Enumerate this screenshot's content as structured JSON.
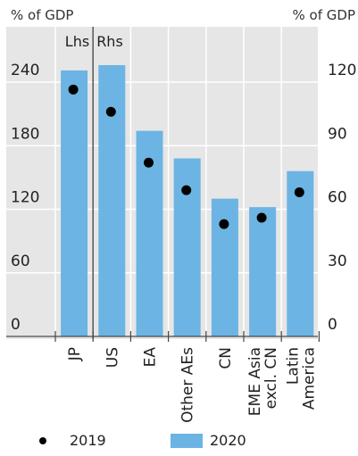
{
  "chart_data": {
    "type": "bar",
    "left_unit": "% of GDP",
    "right_unit": "% of GDP",
    "panel_labels": [
      "Lhs",
      "Rhs"
    ],
    "categories": [
      "JP",
      "US",
      "EA",
      "Other AEs",
      "CN",
      "EME Asia excl. CN",
      "Latin America"
    ],
    "category_lines": [
      [
        "JP"
      ],
      [
        "US"
      ],
      [
        "EA"
      ],
      [
        "Other AEs"
      ],
      [
        "CN"
      ],
      [
        "EME Asia",
        "excl. CN"
      ],
      [
        "Latin",
        "America"
      ]
    ],
    "category_axis": [
      "left",
      "right",
      "right",
      "right",
      "right",
      "right",
      "right"
    ],
    "left_axis": {
      "ticks": [
        0,
        60,
        120,
        180,
        240
      ],
      "ylim": [
        0,
        290
      ]
    },
    "right_axis": {
      "ticks": [
        0,
        30,
        60,
        90,
        120
      ],
      "ylim": [
        0,
        145
      ]
    },
    "series": [
      {
        "name": "2020",
        "kind": "bar",
        "color": "#6cb4e4",
        "values": [
          251,
          128,
          97,
          84,
          65,
          61,
          78
        ]
      },
      {
        "name": "2019",
        "kind": "dot",
        "color": "#000000",
        "values": [
          233,
          106,
          82,
          69,
          53,
          56,
          68
        ]
      }
    ],
    "legend": {
      "placement": "bottom",
      "items": [
        "2019",
        "2020"
      ]
    },
    "grid": true
  }
}
